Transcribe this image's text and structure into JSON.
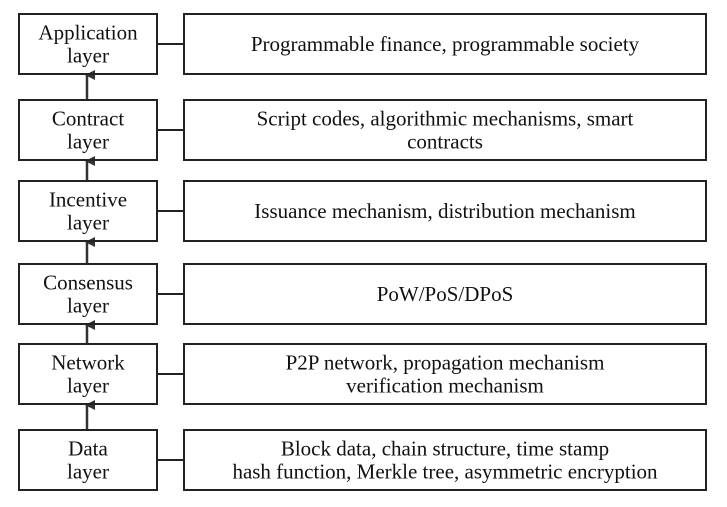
{
  "layers": [
    {
      "name_lines": [
        "Application",
        "layer"
      ],
      "desc_lines": [
        "Programmable finance, programmable society"
      ]
    },
    {
      "name_lines": [
        "Contract",
        "layer"
      ],
      "desc_lines": [
        "Script codes, algorithmic mechanisms,  smart",
        "contracts"
      ]
    },
    {
      "name_lines": [
        "Incentive",
        "layer"
      ],
      "desc_lines": [
        "Issuance mechanism, distribution mechanism"
      ]
    },
    {
      "name_lines": [
        "Consensus",
        "layer"
      ],
      "desc_lines": [
        "PoW/PoS/DPoS"
      ]
    },
    {
      "name_lines": [
        "Network",
        "layer"
      ],
      "desc_lines": [
        "P2P network, propagation mechanism",
        "verification mechanism"
      ]
    },
    {
      "name_lines": [
        "Data",
        "layer"
      ],
      "desc_lines": [
        "Block data, chain structure, time stamp",
        "hash function, Merkle tree, asymmetric encryption"
      ]
    }
  ],
  "colors": {
    "stroke": "#222222",
    "text": "#111111",
    "background": "#ffffff"
  }
}
